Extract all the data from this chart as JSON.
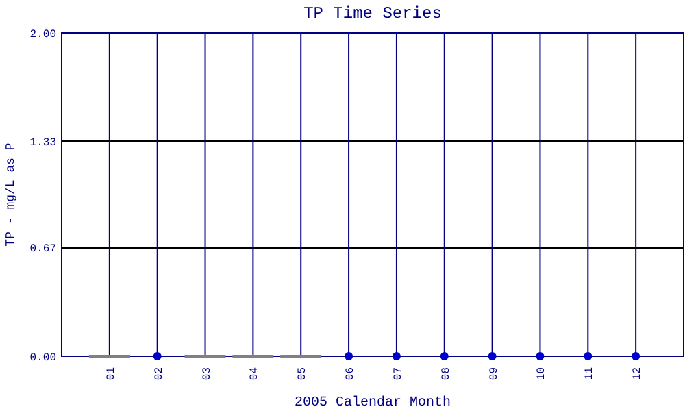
{
  "chart_data": {
    "type": "scatter",
    "title": "TP Time Series",
    "xlabel": "2005 Calendar Month",
    "ylabel": "TP - mg/L as P",
    "categories": [
      "01",
      "02",
      "03",
      "04",
      "05",
      "06",
      "07",
      "08",
      "09",
      "10",
      "11",
      "12"
    ],
    "ylim": [
      0,
      2
    ],
    "yticks": [
      {
        "value": 0,
        "label": "0.00"
      },
      {
        "value": 0.67,
        "label": "0.67"
      },
      {
        "value": 1.33,
        "label": "1.33"
      },
      {
        "value": 2,
        "label": "2.00"
      }
    ],
    "grid": true,
    "marker": "circle",
    "series": [
      {
        "type": "bar",
        "color": "#808080",
        "values": [
          0,
          null,
          0,
          0,
          0,
          null,
          null,
          null,
          null,
          null,
          null,
          null
        ]
      },
      {
        "color": "#0000cc",
        "values": [
          null,
          0,
          null,
          null,
          null,
          0,
          0,
          0,
          0,
          0,
          0,
          0
        ]
      }
    ]
  }
}
